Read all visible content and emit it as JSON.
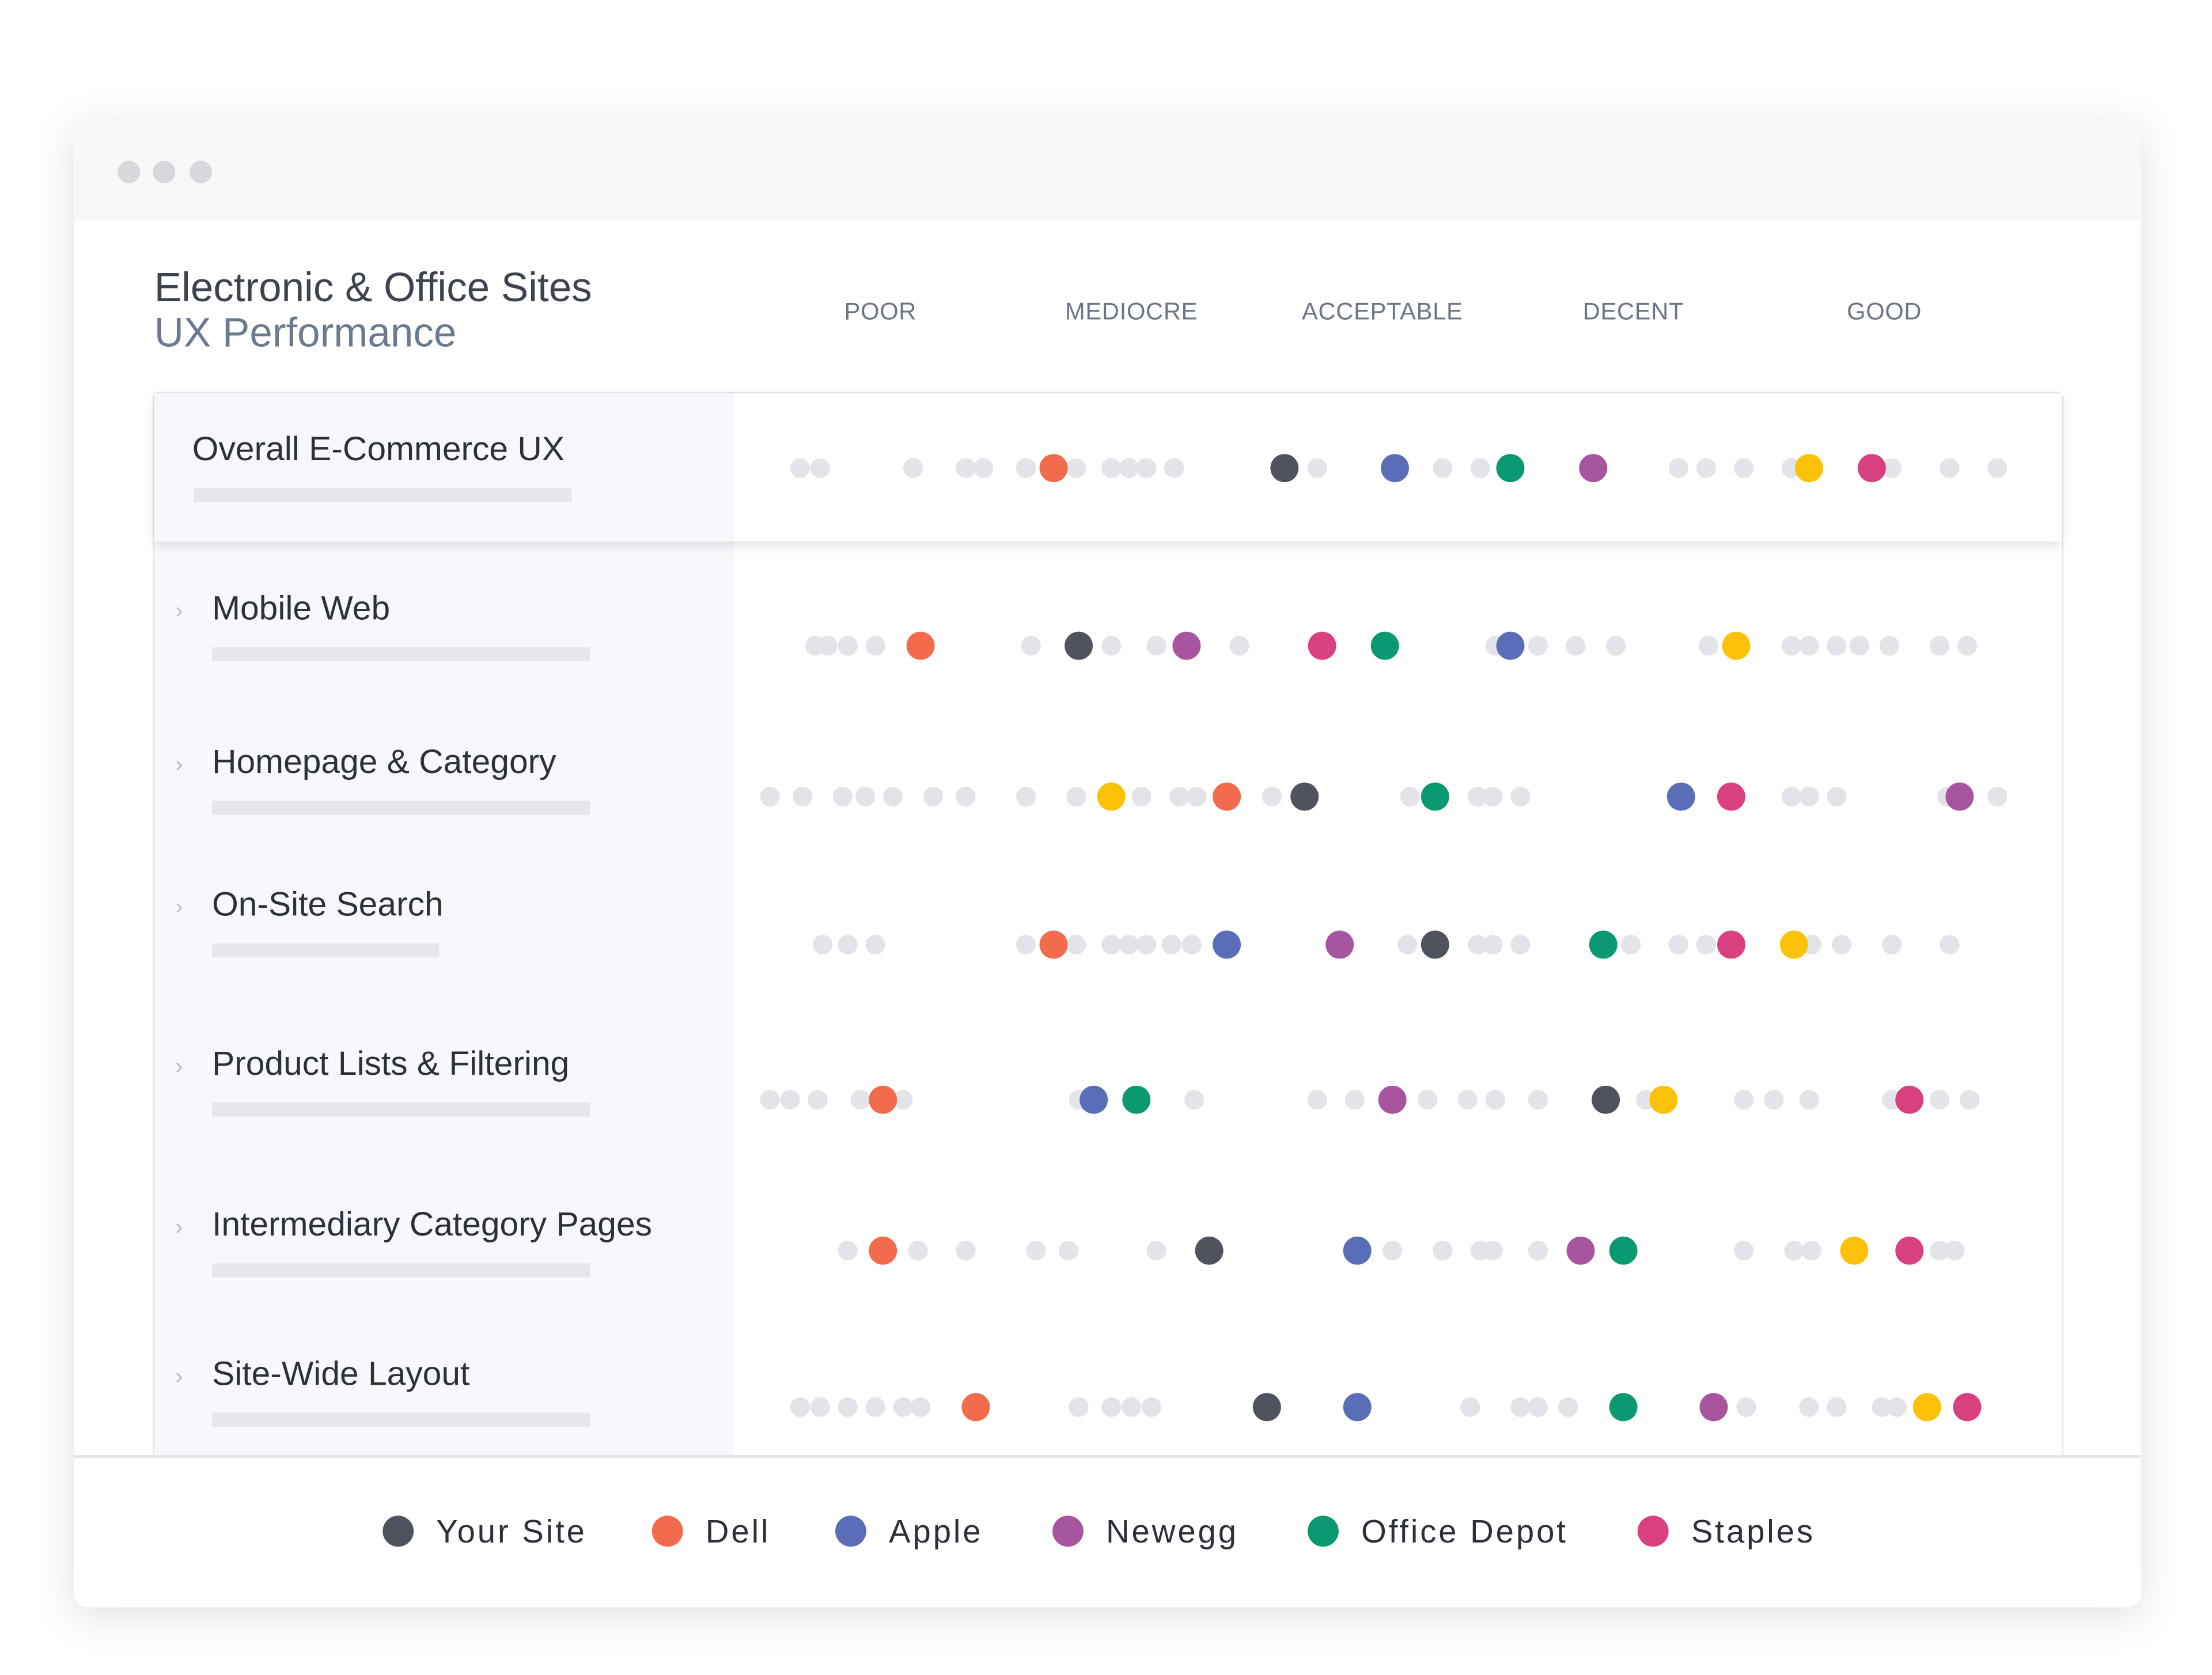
{
  "chart_data": {
    "type": "dot",
    "title": "Electronic & Office Sites",
    "subtitle": "UX Performance",
    "xlim": [
      0,
      5
    ],
    "xticks": [
      {
        "value": 0.5,
        "label": "POOR"
      },
      {
        "value": 1.5,
        "label": "MEDIOCRE"
      },
      {
        "value": 2.5,
        "label": "ACCEPTABLE"
      },
      {
        "value": 3.5,
        "label": "DECENT"
      },
      {
        "value": 4.5,
        "label": "GOOD"
      }
    ],
    "categories": [
      "Overall E-Commerce UX",
      "Mobile Web",
      "Homepage & Category",
      "On-Site Search",
      "Product Lists & Filtering",
      "Intermediary Category Pages",
      "Site-Wide Layout"
    ],
    "series": [
      {
        "name": "Your Site",
        "color": "#4f535e",
        "values": [
          2.11,
          1.29,
          2.19,
          2.71,
          3.39,
          1.81,
          2.04
        ]
      },
      {
        "name": "Dell",
        "color": "#f26b4c",
        "values": [
          1.19,
          0.66,
          1.88,
          1.19,
          0.51,
          0.51,
          0.88
        ]
      },
      {
        "name": "Apple",
        "color": "#5a6eb8",
        "values": [
          2.55,
          3.01,
          3.69,
          1.88,
          1.35,
          2.4,
          2.4
        ]
      },
      {
        "name": "Newegg",
        "color": "#a7559e",
        "values": [
          3.34,
          1.72,
          4.8,
          2.33,
          2.54,
          3.29,
          3.82
        ]
      },
      {
        "name": "Office Depot",
        "color": "#0b9971",
        "values": [
          3.01,
          2.51,
          2.71,
          3.38,
          1.52,
          3.46,
          3.46
        ]
      },
      {
        "name": "Staples",
        "color": "#d9407f",
        "values": [
          4.45,
          2.26,
          3.89,
          3.89,
          4.6,
          4.6,
          4.83
        ]
      },
      {
        "color": "#fcc20a",
        "values": [
          4.2,
          3.91,
          1.42,
          4.14,
          3.62,
          4.38,
          4.67
        ]
      }
    ],
    "others": {
      "color": "#e2e4ea",
      "values": [
        [
          0.18,
          0.26,
          0.63,
          0.84,
          0.91,
          1.08,
          1.28,
          1.42,
          1.49,
          1.56,
          1.67,
          2.24,
          2.74,
          2.89,
          3.68,
          3.79,
          3.94,
          4.13,
          4.53,
          4.76,
          4.95
        ],
        [
          0.24,
          0.29,
          0.37,
          0.48,
          1.1,
          1.42,
          1.6,
          1.93,
          2.95,
          3.12,
          3.27,
          3.43,
          3.8,
          4.13,
          4.2,
          4.31,
          4.4,
          4.52,
          4.72,
          4.83
        ],
        [
          0.06,
          0.19,
          0.35,
          0.44,
          0.55,
          0.71,
          0.84,
          1.08,
          1.28,
          1.54,
          1.69,
          1.76,
          2.06,
          2.61,
          2.88,
          2.94,
          3.05,
          4.13,
          4.2,
          4.31,
          4.75,
          4.95
        ],
        [
          0.27,
          0.37,
          0.48,
          1.08,
          1.28,
          1.42,
          1.49,
          1.56,
          1.66,
          1.74,
          2.6,
          2.88,
          2.94,
          3.05,
          3.49,
          3.68,
          3.79,
          4.21,
          4.33,
          4.53,
          4.76
        ],
        [
          0.06,
          0.14,
          0.25,
          0.42,
          0.59,
          1.29,
          1.75,
          2.24,
          2.39,
          2.68,
          2.84,
          2.95,
          3.12,
          3.55,
          3.94,
          4.06,
          4.2,
          4.53,
          4.72,
          4.84
        ],
        [
          0.37,
          0.65,
          0.84,
          1.12,
          1.25,
          1.6,
          2.54,
          2.74,
          2.89,
          2.94,
          3.12,
          3.94,
          4.14,
          4.21,
          4.72,
          4.78
        ],
        [
          0.18,
          0.26,
          0.37,
          0.48,
          0.59,
          0.66,
          1.29,
          1.42,
          1.5,
          1.58,
          2.85,
          3.05,
          3.12,
          3.24,
          3.95,
          4.2,
          4.31,
          4.49,
          4.55
        ]
      ]
    }
  }
}
